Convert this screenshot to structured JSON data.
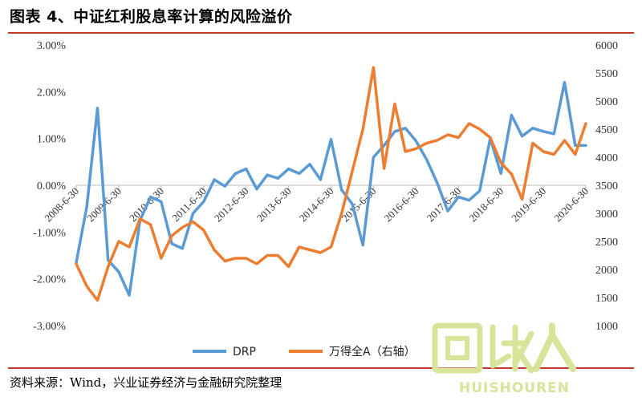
{
  "title": "图表 4、中证红利股息率计算的风险溢价",
  "source": "资料来源：Wind，兴业证券经济与金融研究院整理",
  "watermark": {
    "text": "HUISHOUREN",
    "logo": "回收人",
    "color": "#d7e49a"
  },
  "chart_data": {
    "type": "line",
    "x_ticks": [
      "2008-6-30",
      "2009-6-30",
      "2010-6-30",
      "2011-6-30",
      "2012-6-30",
      "2013-6-30",
      "2014-6-30",
      "2015-6-30",
      "2016-6-30",
      "2017-6-30",
      "2018-6-30",
      "2019-6-30",
      "2020-6-30"
    ],
    "y_left": {
      "min": -3.0,
      "max": 3.0,
      "step": 1.0,
      "ticks": [
        "-3.00%",
        "-2.00%",
        "-1.00%",
        "0.00%",
        "1.00%",
        "2.00%",
        "3.00%"
      ]
    },
    "y_right": {
      "min": 1000,
      "max": 6000,
      "step": 500,
      "ticks": [
        "1000",
        "1500",
        "2000",
        "2500",
        "3000",
        "3500",
        "4000",
        "4500",
        "5000",
        "5500",
        "6000"
      ]
    },
    "grid": false,
    "legend_position": "bottom-center",
    "series": [
      {
        "name": "DRP",
        "axis": "left",
        "color": "#5b9bd5",
        "x": [
          2008.5,
          2008.75,
          2009.0,
          2009.25,
          2009.5,
          2009.75,
          2010.0,
          2010.25,
          2010.5,
          2010.75,
          2011.0,
          2011.25,
          2011.5,
          2011.75,
          2012.0,
          2012.25,
          2012.5,
          2012.75,
          2013.0,
          2013.25,
          2013.5,
          2013.75,
          2014.0,
          2014.25,
          2014.5,
          2014.75,
          2015.0,
          2015.25,
          2015.5,
          2015.75,
          2016.0,
          2016.25,
          2016.5,
          2016.75,
          2017.0,
          2017.25,
          2017.5,
          2017.75,
          2018.0,
          2018.25,
          2018.5,
          2018.75,
          2019.0,
          2019.25,
          2019.5,
          2019.75,
          2020.0,
          2020.25,
          2020.5
        ],
        "values": [
          -1.65,
          -0.45,
          1.65,
          -1.6,
          -1.85,
          -2.35,
          -0.75,
          -0.25,
          -0.35,
          -1.25,
          -1.35,
          -0.6,
          -0.35,
          0.12,
          -0.02,
          0.25,
          0.35,
          -0.08,
          0.22,
          0.15,
          0.35,
          0.25,
          0.45,
          0.12,
          0.98,
          -0.1,
          -0.4,
          -1.28,
          0.6,
          0.85,
          1.15,
          1.22,
          0.95,
          0.55,
          0.05,
          -0.55,
          -0.25,
          -0.32,
          -0.12,
          1.0,
          0.25,
          1.5,
          1.05,
          1.22,
          1.15,
          1.1,
          2.2,
          0.85,
          0.85
        ]
      },
      {
        "name": "万得全A（右轴）",
        "axis": "right",
        "color": "#ed7d31",
        "x": [
          2008.5,
          2008.75,
          2009.0,
          2009.25,
          2009.5,
          2009.75,
          2010.0,
          2010.25,
          2010.5,
          2010.75,
          2011.0,
          2011.25,
          2011.5,
          2011.75,
          2012.0,
          2012.25,
          2012.5,
          2012.75,
          2013.0,
          2013.25,
          2013.5,
          2013.75,
          2014.0,
          2014.25,
          2014.5,
          2014.75,
          2015.0,
          2015.25,
          2015.5,
          2015.75,
          2016.0,
          2016.25,
          2016.5,
          2016.75,
          2017.0,
          2017.25,
          2017.5,
          2017.75,
          2018.0,
          2018.25,
          2018.5,
          2018.75,
          2019.0,
          2019.25,
          2019.5,
          2019.75,
          2020.0,
          2020.25,
          2020.5
        ],
        "values": [
          2100,
          1700,
          1450,
          2050,
          2500,
          2400,
          2900,
          2800,
          2200,
          2600,
          2750,
          2850,
          2700,
          2350,
          2150,
          2200,
          2200,
          2100,
          2250,
          2250,
          2050,
          2400,
          2350,
          2300,
          2400,
          3000,
          3750,
          4500,
          5600,
          3800,
          4950,
          4100,
          4150,
          4250,
          4300,
          4400,
          4350,
          4600,
          4500,
          4350,
          3900,
          3700,
          3250,
          4250,
          4100,
          4050,
          4300,
          4050,
          4600
        ]
      }
    ]
  }
}
